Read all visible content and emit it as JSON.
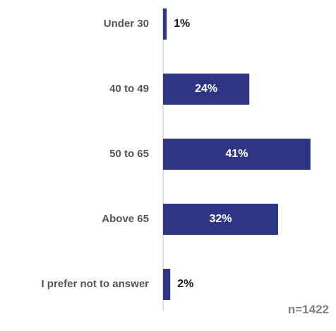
{
  "chart_data": {
    "type": "bar",
    "orientation": "horizontal",
    "categories": [
      "Under 30",
      "40 to 49",
      "50 to 65",
      "Above 65",
      "I prefer not to answer"
    ],
    "values": [
      1,
      24,
      41,
      32,
      2
    ],
    "value_labels": [
      "1%",
      "24%",
      "41%",
      "32%",
      "2%"
    ],
    "unit": "%",
    "xlim": [
      0,
      43
    ],
    "bar_color": "#2e3585",
    "label_inside_color": "#ffffff",
    "label_outside_color": "#1a1a1a",
    "grid": false,
    "legend": "none",
    "note": "n=1422"
  }
}
